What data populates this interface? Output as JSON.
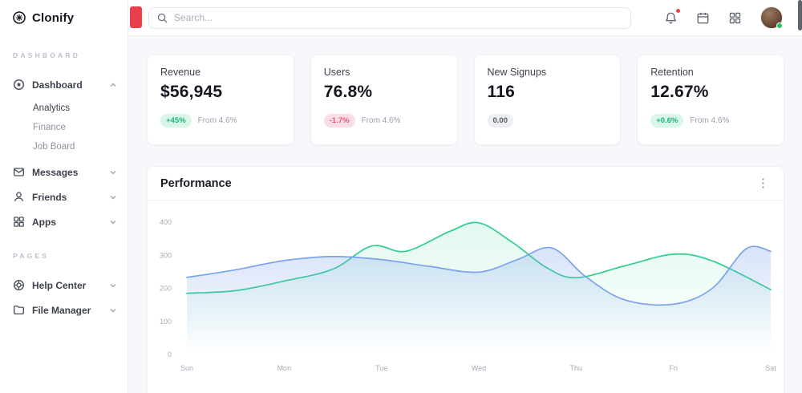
{
  "app": {
    "name": "Clonify"
  },
  "colors": {
    "accent_red": "#e8404a",
    "status_online": "#22c55e",
    "badge_green": "#1db473",
    "badge_red": "#df5880",
    "series_green": "#2fcf8e",
    "series_blue": "#7ba3ec"
  },
  "topbar": {
    "search_placeholder": "Search..."
  },
  "sidebar": {
    "sections": [
      {
        "label": "DASHBOARD"
      },
      {
        "label": "PAGES"
      }
    ],
    "items": [
      {
        "label": "Dashboard"
      },
      {
        "label": "Analytics"
      },
      {
        "label": "Finance"
      },
      {
        "label": "Job Board"
      },
      {
        "label": "Messages"
      },
      {
        "label": "Friends"
      },
      {
        "label": "Apps"
      },
      {
        "label": "Help Center"
      },
      {
        "label": "File Manager"
      }
    ]
  },
  "stats": [
    {
      "label": "Revenue",
      "value": "$56,945",
      "badge": "+45%",
      "badge_type": "green",
      "note": "From 4.6%"
    },
    {
      "label": "Users",
      "value": "76.8%",
      "badge": "-1.7%",
      "badge_type": "red",
      "note": "From 4.6%"
    },
    {
      "label": "New Signups",
      "value": "116",
      "badge": "0.00",
      "badge_type": "gray",
      "note": ""
    },
    {
      "label": "Retention",
      "value": "12.67%",
      "badge": "+0.6%",
      "badge_type": "green",
      "note": "From 4.6%"
    }
  ],
  "performance": {
    "title": "Performance"
  },
  "chart_data": {
    "type": "area",
    "title": "Performance",
    "x_labels": [
      "Sun",
      "Mon",
      "Tue",
      "Wed",
      "Thu",
      "Fri",
      "Sat"
    ],
    "y_ticks": [
      0,
      100,
      200,
      300,
      400
    ],
    "ylim": [
      0,
      465
    ],
    "grid": false,
    "legend": "none",
    "series": [
      {
        "name": "series-green",
        "color": "#2fcf8e",
        "fill_opacity": 0.14,
        "points": [
          [
            0,
            185
          ],
          [
            0.5,
            193
          ],
          [
            1,
            222
          ],
          [
            1.5,
            258
          ],
          [
            1.9,
            328
          ],
          [
            2.25,
            312
          ],
          [
            2.7,
            372
          ],
          [
            3,
            398
          ],
          [
            3.35,
            338
          ],
          [
            3.7,
            262
          ],
          [
            4,
            232
          ],
          [
            4.5,
            268
          ],
          [
            5,
            303
          ],
          [
            5.4,
            283
          ],
          [
            6,
            196
          ]
        ]
      },
      {
        "name": "series-blue",
        "color": "#7ba3ec",
        "fill_opacity": 0.3,
        "points": [
          [
            0,
            233
          ],
          [
            0.5,
            256
          ],
          [
            1,
            284
          ],
          [
            1.5,
            296
          ],
          [
            2,
            287
          ],
          [
            2.5,
            266
          ],
          [
            3,
            249
          ],
          [
            3.4,
            287
          ],
          [
            3.75,
            322
          ],
          [
            4.1,
            235
          ],
          [
            4.5,
            165
          ],
          [
            5,
            152
          ],
          [
            5.4,
            200
          ],
          [
            5.75,
            320
          ],
          [
            6,
            312
          ]
        ]
      }
    ]
  }
}
